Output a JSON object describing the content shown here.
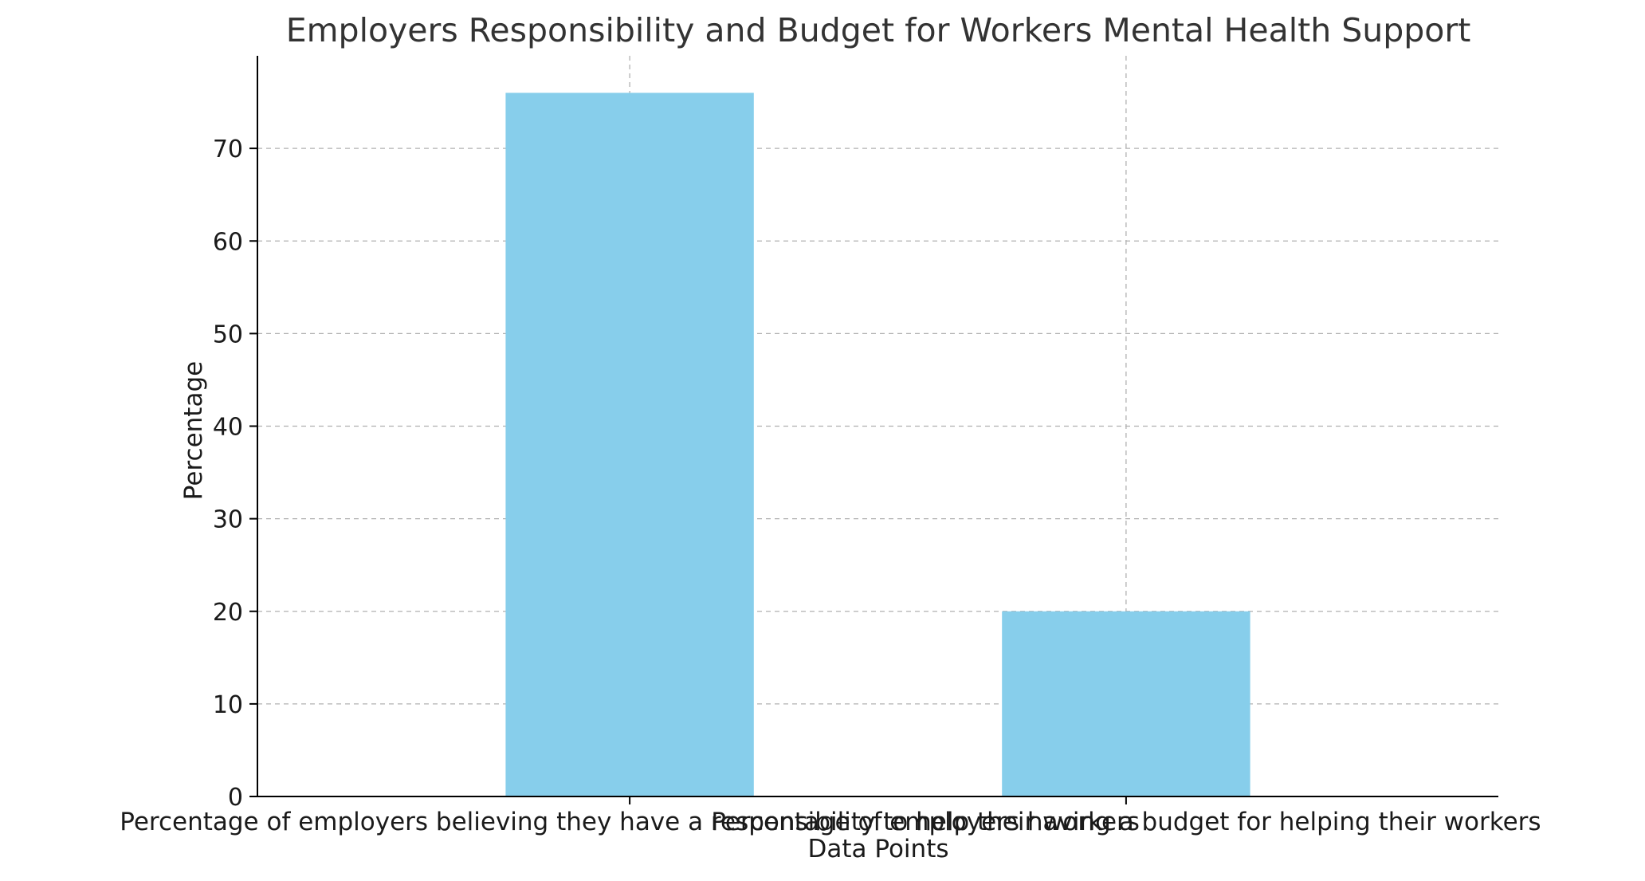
{
  "chart_data": {
    "type": "bar",
    "title": "Employers Responsibility and Budget for Workers Mental Health Support",
    "xlabel": "Data Points",
    "ylabel": "Percentage",
    "categories": [
      "Percentage of employers believing they have a responsibility to help their workers",
      "Percentage of employers having a budget for helping their workers"
    ],
    "values": [
      76,
      20
    ],
    "ylim": [
      0,
      80
    ],
    "yticks": [
      0,
      10,
      20,
      30,
      40,
      50,
      60,
      70
    ],
    "grid": true,
    "bar_color": "#87ceeb",
    "legend": "none"
  }
}
